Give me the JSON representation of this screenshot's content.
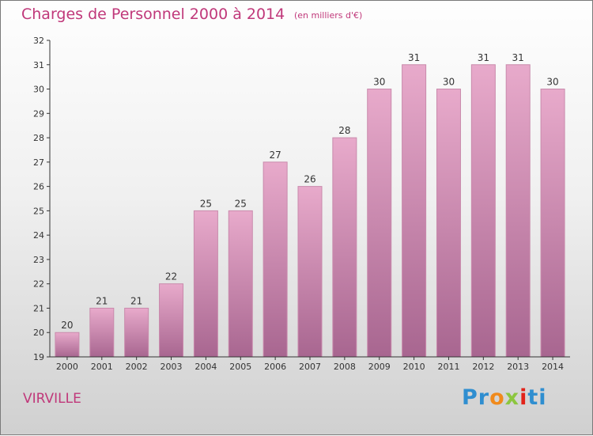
{
  "title": "Charges de Personnel 2000 à 2014",
  "subtitle": "(en milliers d'€)",
  "place_name": "VIRVILLE",
  "logo": {
    "part1": "Pr",
    "part2": "o",
    "part3": "x",
    "part4": "i",
    "part5": "ti"
  },
  "colors": {
    "title": "#c0387a",
    "bar_top": "#e8aacb",
    "bar_bottom": "#a86690",
    "bar_edge": "#c98aac"
  },
  "chart_data": {
    "type": "bar",
    "title": "Charges de Personnel 2000 à 2014",
    "subtitle": "(en milliers d'€)",
    "categories": [
      "2000",
      "2001",
      "2002",
      "2003",
      "2004",
      "2005",
      "2006",
      "2007",
      "2008",
      "2009",
      "2010",
      "2011",
      "2012",
      "2013",
      "2014"
    ],
    "values": [
      20,
      21,
      21,
      22,
      25,
      25,
      27,
      26,
      28,
      30,
      31,
      30,
      31,
      31,
      30
    ],
    "data_labels": [
      "20",
      "21",
      "21",
      "22",
      "25",
      "25",
      "27",
      "26",
      "28",
      "30",
      "31",
      "30",
      "31",
      "31",
      "30"
    ],
    "ylim": [
      19,
      32
    ],
    "yticks": [
      19,
      20,
      21,
      22,
      23,
      24,
      25,
      26,
      27,
      28,
      29,
      30,
      31,
      32
    ],
    "xlabel": "",
    "ylabel": "",
    "grid": false,
    "legend": "none"
  }
}
